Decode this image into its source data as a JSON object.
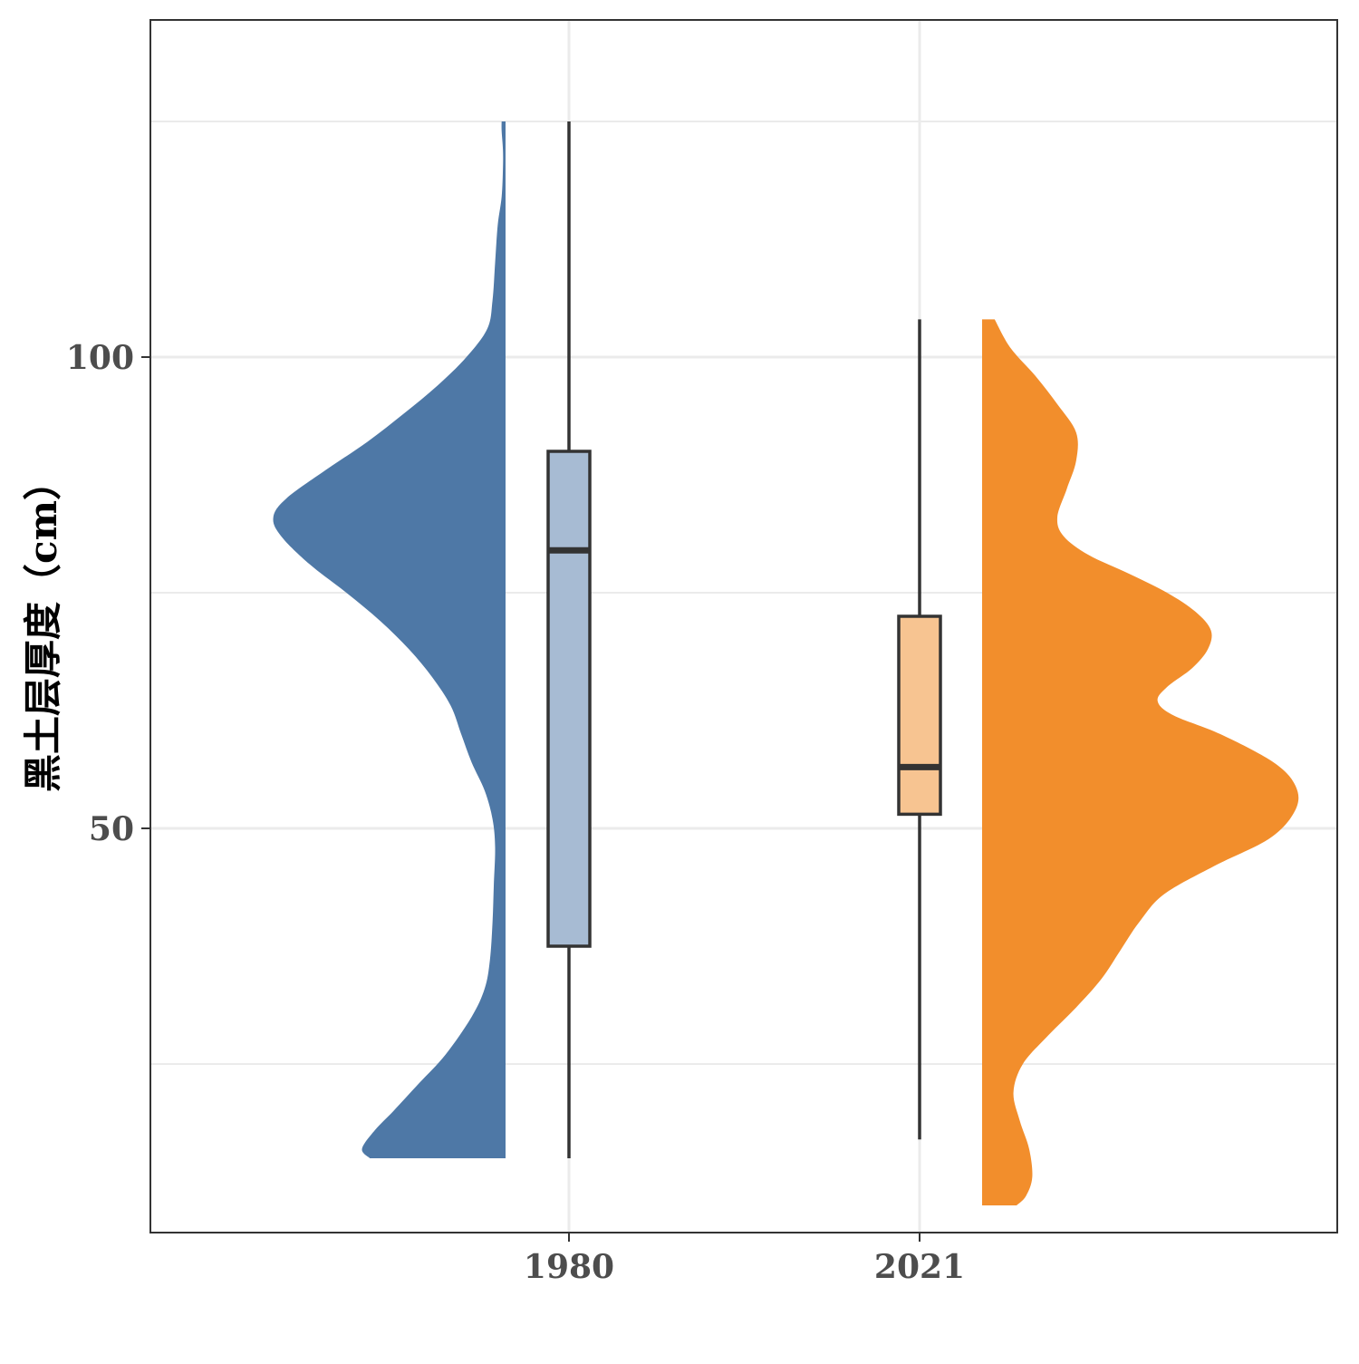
{
  "chart_data": {
    "type": "raincloud (half-violin + boxplot)",
    "title": "",
    "xlabel": "",
    "ylabel": "黑土层厚度（cm）",
    "categories": [
      "1980",
      "2021"
    ],
    "y_ticks": [
      50,
      100
    ],
    "ylim": [
      6.5,
      135
    ],
    "grid": true,
    "legend": "none",
    "colors": {
      "1980": {
        "density": "#4e78a6",
        "box_fill": "#a7bbd3"
      },
      "2021": {
        "density": "#f28e2c",
        "box_fill": "#f7c491"
      },
      "outline": "#333333",
      "grid": "#ebebeb",
      "panel_border": "#333333"
    },
    "boxplots": [
      {
        "category": "1980",
        "min": 15,
        "q1": 37.5,
        "median": 79.5,
        "q3": 90,
        "max": 125
      },
      {
        "category": "2021",
        "min": 17,
        "q1": 51.5,
        "median": 56.5,
        "q3": 72.5,
        "max": 104
      }
    ],
    "densities": [
      {
        "category": "1980",
        "side": "left",
        "y": [
          15,
          16,
          18,
          20,
          23,
          26,
          30,
          33,
          36,
          40,
          44,
          48,
          51,
          54,
          57,
          60,
          63,
          66,
          69,
          72,
          75,
          78,
          81,
          83,
          85,
          88,
          91,
          94,
          97,
          100,
          103,
          106,
          110,
          114,
          117,
          120,
          122,
          124,
          125
        ],
        "density": [
          0.52,
          0.55,
          0.5,
          0.43,
          0.33,
          0.23,
          0.13,
          0.08,
          0.06,
          0.05,
          0.045,
          0.04,
          0.05,
          0.08,
          0.13,
          0.17,
          0.21,
          0.28,
          0.37,
          0.48,
          0.61,
          0.75,
          0.86,
          0.89,
          0.84,
          0.69,
          0.53,
          0.39,
          0.26,
          0.15,
          0.07,
          0.05,
          0.04,
          0.03,
          0.015,
          0.01,
          0.01,
          0.015,
          0.015
        ]
      },
      {
        "category": "2021",
        "side": "right",
        "y": [
          10,
          11,
          13,
          16,
          19,
          22,
          25,
          28,
          31,
          34,
          37,
          40,
          43,
          46,
          49,
          52,
          54.5,
          57,
          60,
          62,
          63.5,
          65,
          67,
          69,
          71,
          73,
          75,
          77,
          79,
          81,
          83,
          86,
          89,
          92,
          95,
          98,
          101,
          104
        ],
        "density": [
          0.11,
          0.14,
          0.16,
          0.15,
          0.12,
          0.1,
          0.13,
          0.21,
          0.3,
          0.38,
          0.44,
          0.5,
          0.58,
          0.74,
          0.92,
          1.0,
          1.0,
          0.93,
          0.76,
          0.61,
          0.56,
          0.59,
          0.67,
          0.72,
          0.73,
          0.68,
          0.59,
          0.47,
          0.34,
          0.26,
          0.24,
          0.27,
          0.3,
          0.3,
          0.24,
          0.17,
          0.09,
          0.04
        ]
      }
    ]
  }
}
